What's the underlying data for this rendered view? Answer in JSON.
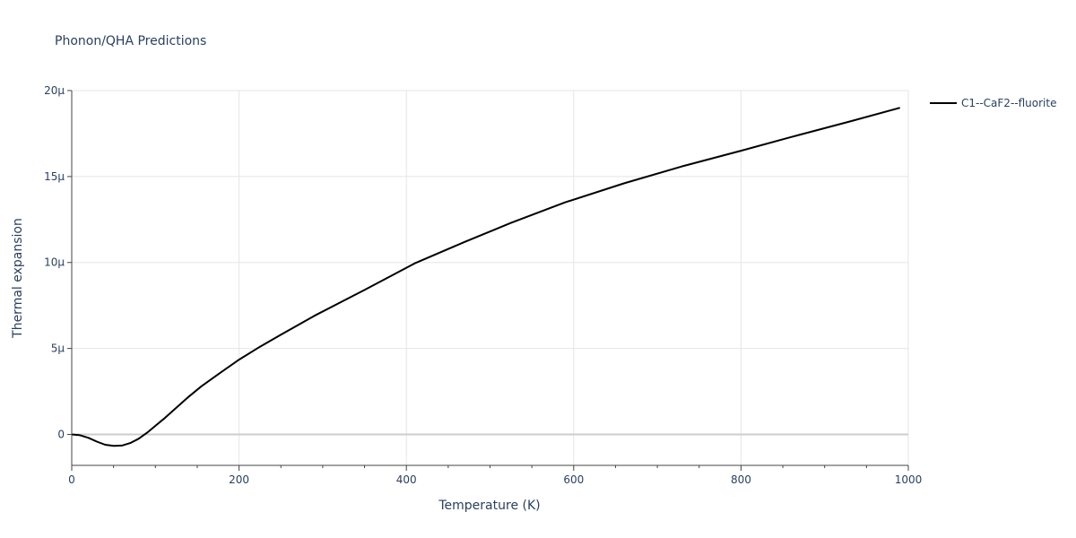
{
  "chart_data": {
    "type": "line",
    "title": "Phonon/QHA Predictions",
    "xlabel": "Temperature (K)",
    "ylabel": "Thermal expansion",
    "xlim": [
      0,
      1000
    ],
    "ylim": [
      -1.8e-06,
      2e-05
    ],
    "x_ticks": [
      {
        "value": 0,
        "label": "0"
      },
      {
        "value": 200,
        "label": "200"
      },
      {
        "value": 400,
        "label": "400"
      },
      {
        "value": 600,
        "label": "600"
      },
      {
        "value": 800,
        "label": "800"
      },
      {
        "value": 1000,
        "label": "1000"
      }
    ],
    "x_minor_ticks": [
      50,
      100,
      150,
      250,
      300,
      350,
      450,
      500,
      550,
      650,
      700,
      750,
      850,
      900,
      950
    ],
    "y_ticks": [
      {
        "value": 0,
        "label": "0"
      },
      {
        "value": 5e-06,
        "label": "5μ"
      },
      {
        "value": 1e-05,
        "label": "10μ"
      },
      {
        "value": 1.5e-05,
        "label": "15μ"
      },
      {
        "value": 2e-05,
        "label": "20μ"
      }
    ],
    "grid": true,
    "legend_position": "top-right",
    "series": [
      {
        "name": "C1--CaF2--fluorite",
        "color": "#000000",
        "x": [
          0,
          10,
          20,
          30,
          40,
          50,
          60,
          70,
          80,
          90,
          100,
          110,
          125,
          140,
          155,
          175,
          200,
          225,
          250,
          290,
          350,
          410,
          470,
          525,
          590,
          660,
          730,
          800,
          860,
          930,
          990
        ],
        "y": [
          0,
          -5e-08,
          -2e-07,
          -4.2e-07,
          -6e-07,
          -6.7e-07,
          -6.5e-07,
          -5e-07,
          -2.5e-07,
          1e-07,
          5e-07,
          9e-07,
          1.55e-06,
          2.2e-06,
          2.8e-06,
          3.5e-06,
          4.35e-06,
          5.1e-06,
          5.8e-06,
          6.9e-06,
          8.4e-06,
          9.95e-06,
          1.12e-05,
          1.23e-05,
          1.35e-05,
          1.46e-05,
          1.56e-05,
          1.65e-05,
          1.73e-05,
          1.82e-05,
          1.9e-05
        ]
      }
    ]
  }
}
